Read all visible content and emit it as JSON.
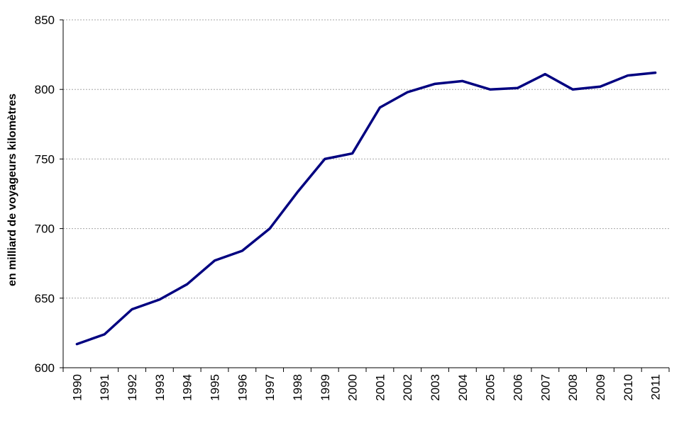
{
  "chart_data": {
    "type": "line",
    "title": "",
    "xlabel": "",
    "ylabel": "en milliard de voyageurs kilomètres",
    "ylim": [
      600,
      850
    ],
    "yticks": [
      600,
      650,
      700,
      750,
      800,
      850
    ],
    "grid": true,
    "categories": [
      "1990",
      "1991",
      "1992",
      "1993",
      "1994",
      "1995",
      "1996",
      "1997",
      "1998",
      "1999",
      "2000",
      "2001",
      "2002",
      "2003",
      "2004",
      "2005",
      "2006",
      "2007",
      "2008",
      "2009",
      "2010",
      "2011"
    ],
    "series": [
      {
        "color": "#000080",
        "values": [
          617,
          624,
          642,
          649,
          660,
          677,
          684,
          700,
          726,
          750,
          754,
          787,
          798,
          804,
          806,
          800,
          801,
          811,
          800,
          802,
          810,
          812
        ]
      }
    ]
  }
}
